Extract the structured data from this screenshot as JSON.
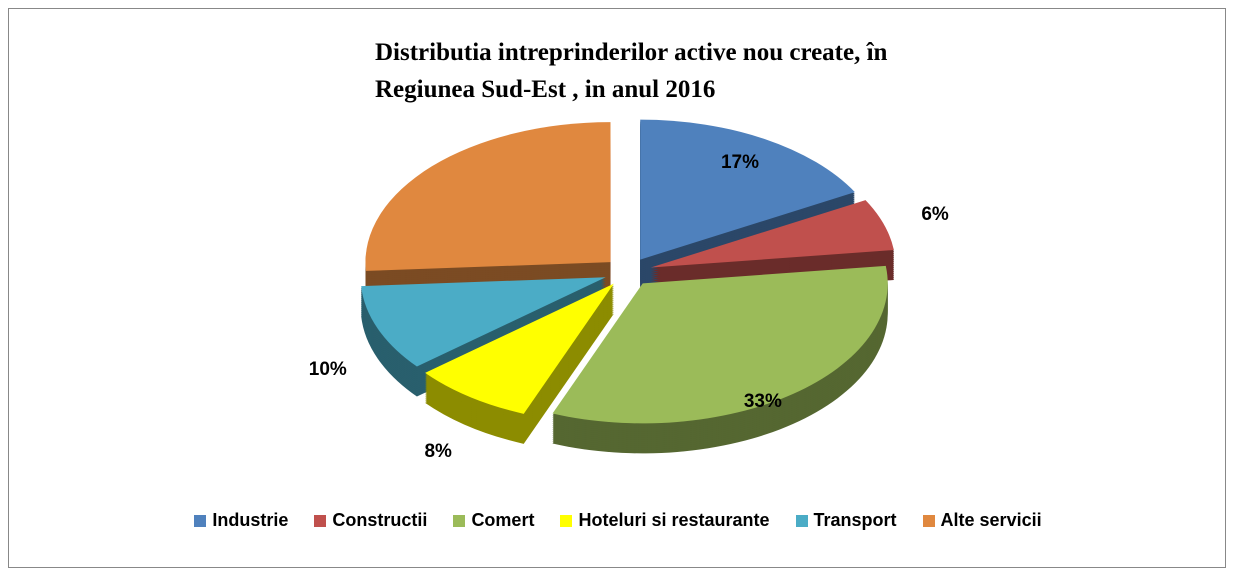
{
  "chart_data": {
    "type": "pie",
    "title": "Distributia intreprinderilor active nou create, în Regiunea Sud-Est , in anul 2016",
    "categories": [
      "Industrie",
      "Constructii",
      "Comert",
      "Hoteluri si restaurante",
      "Transport",
      "Alte servicii"
    ],
    "values": [
      17,
      6,
      33,
      8,
      10,
      26
    ],
    "value_labels": [
      "17%",
      "6%",
      "33%",
      "8%",
      "10%",
      null
    ],
    "colors": [
      "#4f81bd",
      "#c0504d",
      "#9bbb59",
      "#ffff00",
      "#4bacc6",
      "#e0883f"
    ],
    "legend": "bottom"
  }
}
